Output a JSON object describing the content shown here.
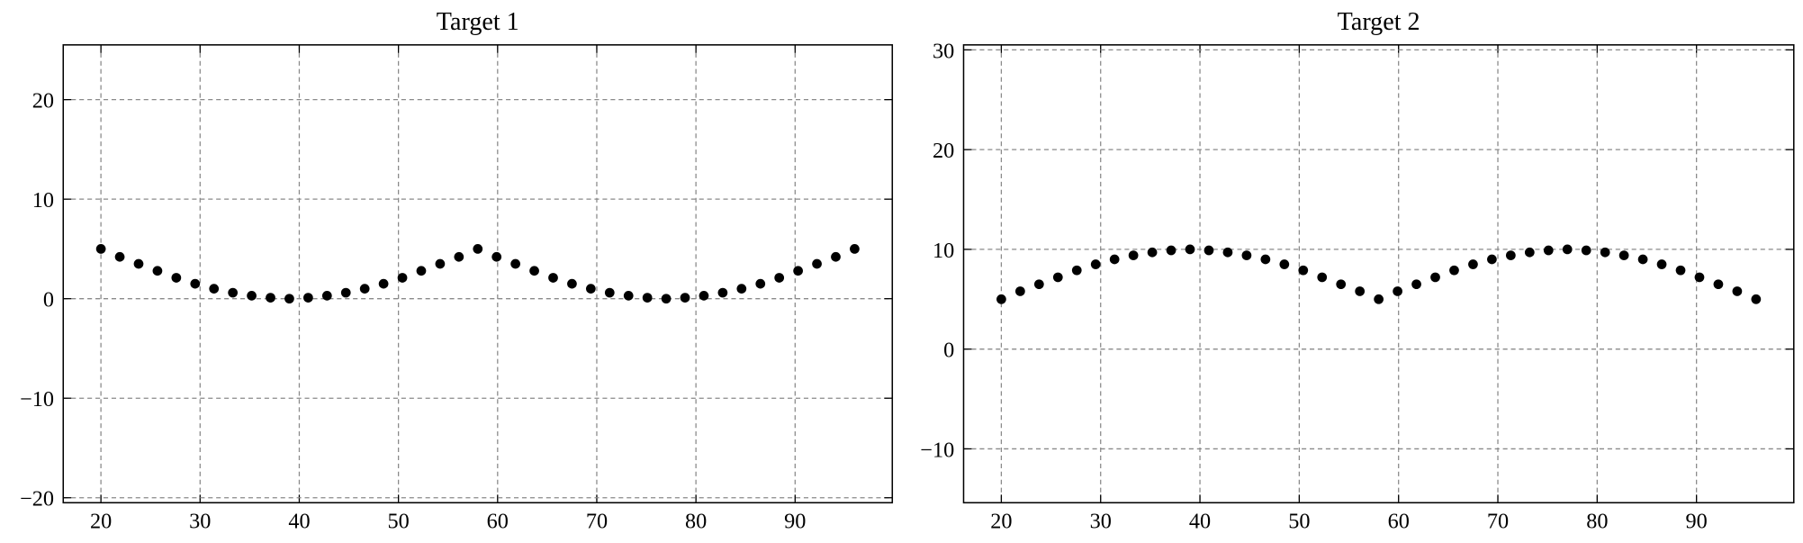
{
  "chart_data": [
    {
      "type": "scatter",
      "title": "Target 1",
      "color": "#000000",
      "grid": true,
      "x": [
        20,
        21.9,
        23.8,
        25.7,
        27.6,
        29.5,
        31.4,
        33.3,
        35.2,
        37.1,
        39,
        40.9,
        42.8,
        44.7,
        46.6,
        48.5,
        50.4,
        52.3,
        54.2,
        56.1,
        58,
        59.9,
        61.8,
        63.7,
        65.6,
        67.5,
        69.4,
        71.3,
        73.2,
        75.1,
        77,
        78.9,
        80.8,
        82.7,
        84.6,
        86.5,
        88.4,
        90.3,
        92.2,
        94.1,
        96
      ],
      "values": [
        5.0,
        4.2,
        3.5,
        2.8,
        2.1,
        1.5,
        1.0,
        0.6,
        0.3,
        0.1,
        0.0,
        0.1,
        0.3,
        0.6,
        1.0,
        1.5,
        2.1,
        2.8,
        3.5,
        4.2,
        5.0,
        4.2,
        3.5,
        2.8,
        2.1,
        1.5,
        1.0,
        0.6,
        0.3,
        0.1,
        0.0,
        0.1,
        0.3,
        0.6,
        1.0,
        1.5,
        2.1,
        2.8,
        3.5,
        4.2,
        5.0
      ],
      "xlim": [
        16.2,
        99.8
      ],
      "xticks": [
        20,
        30,
        40,
        50,
        60,
        70,
        80,
        90
      ],
      "ylim": [
        -20.5,
        25.5
      ],
      "yticks": [
        {
          "value": -20,
          "label": "−20"
        },
        {
          "value": -10,
          "label": "−10"
        },
        0,
        10,
        20
      ]
    },
    {
      "type": "scatter",
      "title": "Target 2",
      "color": "#000000",
      "grid": true,
      "x": [
        20,
        21.9,
        23.8,
        25.7,
        27.6,
        29.5,
        31.4,
        33.3,
        35.2,
        37.1,
        39,
        40.9,
        42.8,
        44.7,
        46.6,
        48.5,
        50.4,
        52.3,
        54.2,
        56.1,
        58,
        59.9,
        61.8,
        63.7,
        65.6,
        67.5,
        69.4,
        71.3,
        73.2,
        75.1,
        77,
        78.9,
        80.8,
        82.7,
        84.6,
        86.5,
        88.4,
        90.3,
        92.2,
        94.1,
        96
      ],
      "values": [
        5.0,
        5.8,
        6.5,
        7.2,
        7.9,
        8.5,
        9.0,
        9.4,
        9.7,
        9.9,
        10.0,
        9.9,
        9.7,
        9.4,
        9.0,
        8.5,
        7.9,
        7.2,
        6.5,
        5.8,
        5.0,
        5.8,
        6.5,
        7.2,
        7.9,
        8.5,
        9.0,
        9.4,
        9.7,
        9.9,
        10.0,
        9.9,
        9.7,
        9.4,
        9.0,
        8.5,
        7.9,
        7.2,
        6.5,
        5.8,
        5.0
      ],
      "xlim": [
        16.2,
        99.8
      ],
      "xticks": [
        20,
        30,
        40,
        50,
        60,
        70,
        80,
        90
      ],
      "ylim": [
        -15.4,
        30.5
      ],
      "yticks": [
        {
          "value": -10,
          "label": "−10"
        },
        0,
        10,
        20,
        30
      ]
    }
  ]
}
